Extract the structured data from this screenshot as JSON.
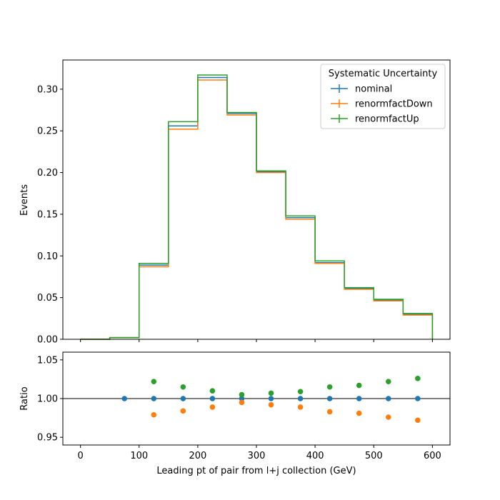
{
  "chart_data": [
    {
      "type": "step",
      "xlabel": "",
      "ylabel": "Events",
      "xlim": [
        -30,
        630
      ],
      "ylim": [
        0,
        0.335
      ],
      "bin_edges": [
        0,
        50,
        100,
        150,
        200,
        250,
        300,
        350,
        400,
        450,
        500,
        550,
        600
      ],
      "xticks": [
        "0",
        "100",
        "200",
        "300",
        "400",
        "500",
        "600"
      ],
      "yticks": [
        "0.00",
        "0.05",
        "0.10",
        "0.15",
        "0.20",
        "0.25",
        "0.30"
      ],
      "legend": {
        "title": "Systematic Uncertainty",
        "position": "top-right"
      },
      "series": [
        {
          "name": "nominal",
          "color": "#1f77b4",
          "values": [
            0.0,
            0.002,
            0.089,
            0.256,
            0.314,
            0.271,
            0.201,
            0.146,
            0.092,
            0.061,
            0.047,
            0.03
          ]
        },
        {
          "name": "renormfactDown",
          "color": "#ff7f0e",
          "values": [
            0.0,
            0.002,
            0.087,
            0.252,
            0.311,
            0.269,
            0.2,
            0.144,
            0.091,
            0.06,
            0.046,
            0.029
          ]
        },
        {
          "name": "renormfactUp",
          "color": "#2ca02c",
          "values": [
            0.0,
            0.002,
            0.091,
            0.261,
            0.317,
            0.272,
            0.202,
            0.148,
            0.094,
            0.062,
            0.048,
            0.031
          ]
        }
      ]
    },
    {
      "type": "scatter",
      "xlabel": "Leading pt of pair from l+j collection (GeV)",
      "ylabel": "Ratio",
      "xlim": [
        -30,
        630
      ],
      "ylim": [
        0.94,
        1.06
      ],
      "reference_line": 1.0,
      "xticks": [
        "0",
        "100",
        "200",
        "300",
        "400",
        "500",
        "600"
      ],
      "yticks": [
        "0.95",
        "1.00",
        "1.05"
      ],
      "series": [
        {
          "name": "nominal",
          "color": "#1f77b4",
          "x": [
            75,
            125,
            175,
            225,
            275,
            325,
            375,
            425,
            475,
            525,
            575
          ],
          "y": [
            1.0,
            1.0,
            1.0,
            1.0,
            1.0,
            1.0,
            1.0,
            1.0,
            1.0,
            1.0,
            1.0
          ]
        },
        {
          "name": "renormfactDown",
          "color": "#ff7f0e",
          "x": [
            125,
            175,
            225,
            275,
            325,
            375,
            425,
            475,
            525,
            575
          ],
          "y": [
            0.979,
            0.984,
            0.989,
            0.995,
            0.992,
            0.989,
            0.983,
            0.981,
            0.976,
            0.972
          ]
        },
        {
          "name": "renormfactUp",
          "color": "#2ca02c",
          "x": [
            125,
            175,
            225,
            275,
            325,
            375,
            425,
            475,
            525,
            575
          ],
          "y": [
            1.022,
            1.015,
            1.01,
            1.005,
            1.007,
            1.009,
            1.015,
            1.017,
            1.022,
            1.026
          ]
        }
      ]
    }
  ]
}
